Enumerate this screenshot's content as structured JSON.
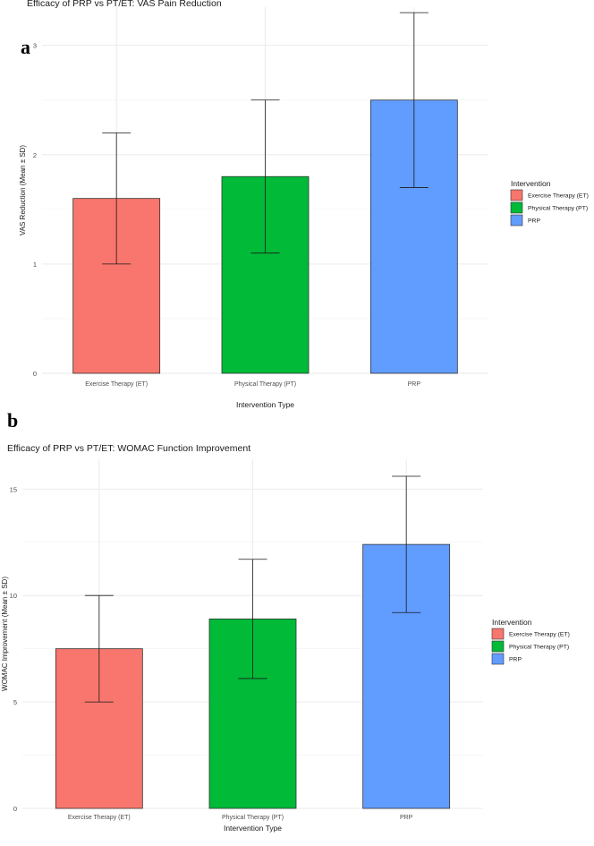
{
  "panels": [
    {
      "label": "a",
      "chart_data": {
        "type": "bar",
        "title": "Efficacy of PRP vs PT/ET: VAS Pain Reduction",
        "xlabel": "Intervention Type",
        "ylabel": "VAS Reduction (Mean ± SD)",
        "categories": [
          "Exercise Therapy (ET)",
          "Physical Therapy (PT)",
          "PRP"
        ],
        "values": [
          1.6,
          1.8,
          2.5
        ],
        "errors": [
          0.6,
          0.7,
          0.8
        ],
        "colors": [
          "#F8766D",
          "#00BA38",
          "#619CFF"
        ],
        "ylim": [
          0,
          3.35
        ],
        "yticks": [
          0,
          1,
          2,
          3
        ],
        "legend": {
          "title": "Intervention",
          "entries": [
            "Exercise Therapy (ET)",
            "Physical Therapy (PT)",
            "PRP"
          ],
          "position": "right"
        },
        "grid": true
      }
    },
    {
      "label": "b",
      "chart_data": {
        "type": "bar",
        "title": "Efficacy of PRP vs PT/ET: WOMAC Function Improvement",
        "xlabel": "Intervention Type",
        "ylabel": "WOMAC Improvement (Mean ± SD)",
        "categories": [
          "Exercise Therapy (ET)",
          "Physical Therapy (PT)",
          "PRP"
        ],
        "values": [
          7.5,
          8.9,
          12.4
        ],
        "errors": [
          2.5,
          2.8,
          3.2
        ],
        "colors": [
          "#F8766D",
          "#00BA38",
          "#619CFF"
        ],
        "ylim": [
          0,
          16.4
        ],
        "yticks": [
          0,
          5,
          10,
          15
        ],
        "legend": {
          "title": "Intervention",
          "entries": [
            "Exercise Therapy (ET)",
            "Physical Therapy (PT)",
            "PRP"
          ],
          "position": "right"
        },
        "grid": true
      }
    }
  ]
}
